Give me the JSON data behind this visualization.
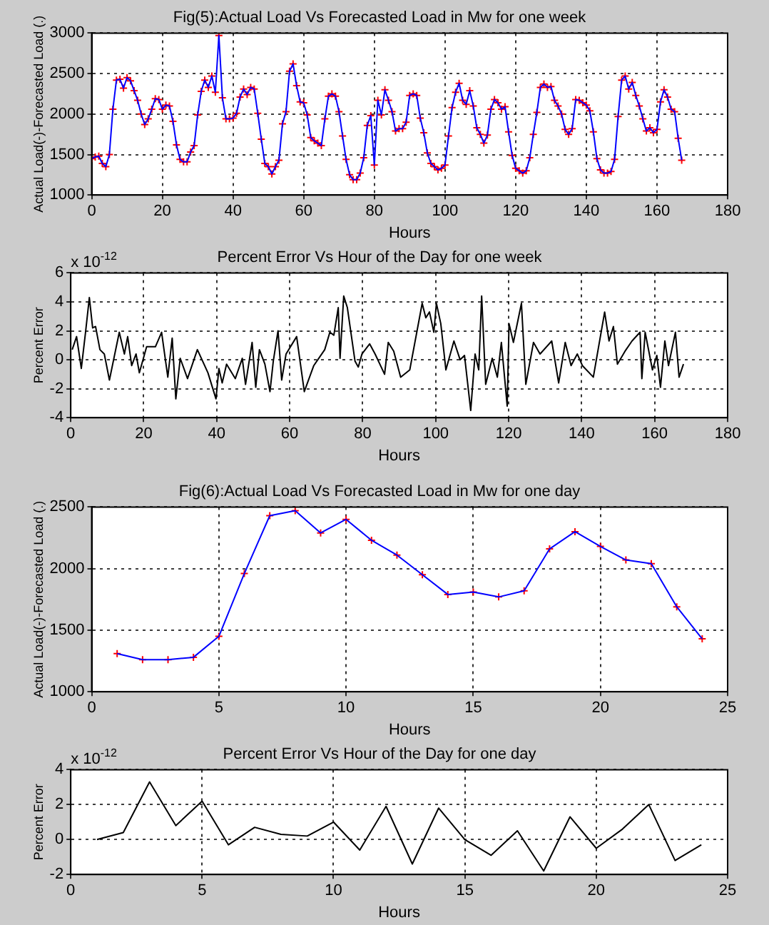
{
  "chart_data": [
    {
      "type": "line",
      "title": "Fig(5):Actual Load Vs Forecasted Load in Mw for one week",
      "xlabel": "Hours",
      "ylabel": "Actual Load(-)-Forecasted Load (.)",
      "x": [
        0,
        1,
        2,
        3,
        4,
        5,
        6,
        7,
        8,
        9,
        10,
        11,
        12,
        13,
        14,
        15,
        16,
        17,
        18,
        19,
        20,
        21,
        22,
        23,
        24,
        25,
        26,
        27,
        28,
        29,
        30,
        31,
        32,
        33,
        34,
        35,
        36,
        37,
        38,
        39,
        40,
        41,
        42,
        43,
        44,
        45,
        46,
        47,
        48,
        49,
        50,
        51,
        52,
        53,
        54,
        55,
        56,
        57,
        58,
        59,
        60,
        61,
        62,
        63,
        64,
        65,
        66,
        67,
        68,
        69,
        70,
        71,
        72,
        73,
        74,
        75,
        76,
        77,
        78,
        79,
        80,
        81,
        82,
        83,
        84,
        85,
        86,
        87,
        88,
        89,
        90,
        91,
        92,
        93,
        94,
        95,
        96,
        97,
        98,
        99,
        100,
        101,
        102,
        103,
        104,
        105,
        106,
        107,
        108,
        109,
        110,
        111,
        112,
        113,
        114,
        115,
        116,
        117,
        118,
        119,
        120,
        121,
        122,
        123,
        124,
        125,
        126,
        127,
        128,
        129,
        130,
        131,
        132,
        133,
        134,
        135,
        136,
        137,
        138,
        139,
        140,
        141,
        142,
        143,
        144,
        145,
        146,
        147,
        148,
        149,
        150,
        151,
        152,
        153,
        154,
        155,
        156,
        157,
        158,
        159,
        160,
        161,
        162,
        163,
        164,
        165,
        166,
        167
      ],
      "series": [
        {
          "type": "line",
          "color": "#0000ff",
          "marker": "none",
          "values": [
            1450,
            1470,
            1480,
            1390,
            1350,
            1500,
            2060,
            2420,
            2430,
            2320,
            2450,
            2410,
            2290,
            2170,
            2000,
            1870,
            1940,
            2060,
            2190,
            2180,
            2060,
            2110,
            2100,
            1910,
            1620,
            1440,
            1410,
            1410,
            1530,
            1610,
            1990,
            2280,
            2420,
            2330,
            2470,
            2270,
            2970,
            2200,
            1940,
            1940,
            1950,
            2010,
            2210,
            2310,
            2240,
            2330,
            2310,
            2010,
            1690,
            1390,
            1350,
            1260,
            1350,
            1430,
            1880,
            2030,
            2530,
            2620,
            2350,
            2150,
            2140,
            1990,
            1710,
            1670,
            1640,
            1610,
            1940,
            2220,
            2250,
            2220,
            2030,
            1730,
            1440,
            1250,
            1190,
            1190,
            1270,
            1460,
            1860,
            1980,
            1370,
            2170,
            1990,
            2300,
            2170,
            2030,
            1790,
            1820,
            1820,
            1900,
            2230,
            2250,
            2230,
            1950,
            1770,
            1520,
            1390,
            1350,
            1310,
            1330,
            1370,
            1730,
            2080,
            2270,
            2380,
            2170,
            2120,
            2290,
            2100,
            1830,
            1750,
            1640,
            1740,
            2060,
            2180,
            2140,
            2060,
            2090,
            1780,
            1490,
            1330,
            1300,
            1270,
            1300,
            1460,
            1750,
            2020,
            2330,
            2370,
            2330,
            2340,
            2170,
            2100,
            2000,
            1810,
            1750,
            1820,
            2180,
            2170,
            2140,
            2110,
            2040,
            1780,
            1450,
            1310,
            1270,
            1270,
            1290,
            1440,
            1970,
            2420,
            2470,
            2310,
            2390,
            2230,
            2100,
            1940,
            1790,
            1830,
            1770,
            1810,
            2150,
            2300,
            2210,
            2060,
            2030,
            1700,
            1430
          ]
        },
        {
          "type": "scatter",
          "color": "#ff0000",
          "marker": "cross",
          "values": [
            1450,
            1470,
            1480,
            1390,
            1350,
            1500,
            2060,
            2420,
            2430,
            2320,
            2450,
            2410,
            2290,
            2170,
            2000,
            1870,
            1940,
            2060,
            2190,
            2180,
            2060,
            2110,
            2100,
            1910,
            1620,
            1440,
            1410,
            1410,
            1530,
            1610,
            1990,
            2280,
            2420,
            2330,
            2470,
            2270,
            2970,
            2200,
            1940,
            1940,
            1950,
            2010,
            2210,
            2310,
            2240,
            2330,
            2310,
            2010,
            1690,
            1390,
            1350,
            1260,
            1350,
            1430,
            1880,
            2030,
            2530,
            2620,
            2350,
            2150,
            2140,
            1990,
            1710,
            1670,
            1640,
            1610,
            1940,
            2220,
            2250,
            2220,
            2030,
            1730,
            1440,
            1250,
            1190,
            1190,
            1270,
            1460,
            1860,
            1980,
            1370,
            2170,
            1990,
            2300,
            2170,
            2030,
            1790,
            1820,
            1820,
            1900,
            2230,
            2250,
            2230,
            1950,
            1770,
            1520,
            1390,
            1350,
            1310,
            1330,
            1370,
            1730,
            2080,
            2270,
            2380,
            2170,
            2120,
            2290,
            2100,
            1830,
            1750,
            1640,
            1740,
            2060,
            2180,
            2140,
            2060,
            2090,
            1780,
            1490,
            1330,
            1300,
            1270,
            1300,
            1460,
            1750,
            2020,
            2330,
            2370,
            2330,
            2340,
            2170,
            2100,
            2000,
            1810,
            1750,
            1820,
            2180,
            2170,
            2140,
            2110,
            2040,
            1780,
            1450,
            1310,
            1270,
            1270,
            1290,
            1440,
            1970,
            2420,
            2470,
            2310,
            2390,
            2230,
            2100,
            1940,
            1790,
            1830,
            1770,
            1810,
            2150,
            2300,
            2210,
            2060,
            2030,
            1700,
            1430
          ]
        }
      ],
      "xlim": [
        0,
        180
      ],
      "xticks": [
        0,
        20,
        40,
        60,
        80,
        100,
        120,
        140,
        160,
        180
      ],
      "ylim": [
        1000,
        3000
      ],
      "yticks": [
        1000,
        1500,
        2000,
        2500,
        3000
      ],
      "grid": true,
      "legend": false
    },
    {
      "type": "line",
      "title": "Percent Error Vs Hour of the Day for one week",
      "xlabel": "Hours",
      "ylabel": "Percent Error",
      "annotations": [
        "x 10$^{-12}$"
      ],
      "x": [
        0.4,
        1.6,
        2.9,
        4.1,
        5.1,
        6,
        6.8,
        8,
        9.2,
        10.6,
        13.3,
        14.7,
        15.6,
        16.7,
        17.9,
        18.8,
        20.8,
        23.2,
        24.9,
        26.6,
        27.8,
        28.8,
        30,
        32,
        34.7,
        37.6,
        39.8,
        40.6,
        41.5,
        42.7,
        45.1,
        47,
        47.9,
        49.7,
        50.7,
        51.7,
        53.2,
        54.6,
        55.5,
        56.8,
        57.8,
        59,
        61.9,
        64,
        66.6,
        69.6,
        71,
        72.1,
        73.3,
        73.8,
        74.8,
        75.8,
        77.9,
        78.8,
        79.8,
        81.9,
        83.4,
        86,
        87,
        88.5,
        90.4,
        92.9,
        96.3,
        97.3,
        98.3,
        99.5,
        100.2,
        101.4,
        102.8,
        105,
        106.7,
        107.9,
        109.6,
        110.8,
        111.8,
        112.6,
        113.7,
        115.5,
        116.9,
        118,
        119.6,
        120.1,
        121.3,
        123.5,
        124.7,
        126.8,
        128.6,
        131.8,
        133.7,
        135.5,
        137.1,
        138.8,
        140.2,
        143.2,
        146.3,
        147.5,
        148.7,
        149.8,
        151.9,
        153.8,
        156,
        156.5,
        157.4,
        159.4,
        160.6,
        161.6,
        162.8,
        163.8,
        165.7,
        166.7,
        167.9
      ],
      "series": [
        {
          "color": "#000000",
          "values": [
            0.7,
            1.6,
            -0.6,
            2,
            4.3,
            2.2,
            2.3,
            0.7,
            0.4,
            -1.4,
            1.9,
            0.4,
            1.6,
            -0.4,
            0.4,
            -0.9,
            0.9,
            0.9,
            1.9,
            -1.2,
            1.5,
            -2.7,
            0.1,
            -1.3,
            0.7,
            -0.9,
            -2.7,
            -0.6,
            -1.6,
            -0.3,
            -1.3,
            0.1,
            -1.7,
            1.2,
            -1.9,
            0.7,
            -0.3,
            -2.2,
            -0.1,
            2,
            -1.4,
            0.4,
            1.6,
            -2.2,
            -0.4,
            0.7,
            1.9,
            1.7,
            3.6,
            0.1,
            4.4,
            3.6,
            -0.1,
            -0.5,
            0.4,
            1.1,
            0.4,
            -1,
            1.2,
            0.6,
            -1.2,
            -0.7,
            3.9,
            2.9,
            3.3,
            1.9,
            3.9,
            2.5,
            -0.7,
            1.3,
            0,
            0.3,
            -3.5,
            0.4,
            -0.7,
            4.4,
            -1.7,
            0.1,
            -1.2,
            1.2,
            -3.2,
            2.5,
            1.2,
            3.9,
            -1.7,
            1.2,
            0.4,
            1.3,
            -1.6,
            1.2,
            -0.4,
            0.4,
            -0.4,
            -1.2,
            3.3,
            1.3,
            2.3,
            -0.3,
            0.6,
            1.3,
            1.9,
            -1.3,
            1.9,
            -0.7,
            0.3,
            -1.9,
            1.3,
            -0.4,
            1.9,
            -1.2,
            -0.3
          ]
        }
      ],
      "xlim": [
        0,
        180
      ],
      "xticks": [
        0,
        20,
        40,
        60,
        80,
        100,
        120,
        140,
        160,
        180
      ],
      "ylim": [
        -4,
        6
      ],
      "yticks": [
        -4,
        -2,
        0,
        2,
        4,
        6
      ],
      "grid": true,
      "legend": false
    },
    {
      "type": "line",
      "title": "Fig(6):Actual Load Vs Forecasted Load in Mw for one day",
      "xlabel": "Hours",
      "ylabel": "Actual Load(-)-Forecasted Load (.)",
      "x": [
        1,
        2,
        3,
        4,
        5,
        6,
        7,
        8,
        9,
        10,
        11,
        12,
        13,
        14,
        15,
        16,
        17,
        18,
        19,
        20,
        21,
        22,
        23,
        24
      ],
      "series": [
        {
          "type": "line",
          "color": "#0000ff",
          "marker": "none",
          "values": [
            1310,
            1260,
            1260,
            1280,
            1450,
            1960,
            2430,
            2470,
            2290,
            2400,
            2230,
            2110,
            1950,
            1790,
            1810,
            1770,
            1820,
            2160,
            2300,
            2180,
            2070,
            2040,
            1690,
            1430
          ]
        },
        {
          "type": "scatter",
          "color": "#ff0000",
          "marker": "cross",
          "values": [
            1310,
            1260,
            1260,
            1280,
            1450,
            1960,
            2430,
            2470,
            2290,
            2400,
            2230,
            2110,
            1950,
            1790,
            1810,
            1770,
            1820,
            2160,
            2300,
            2180,
            2070,
            2040,
            1690,
            1430
          ]
        }
      ],
      "xlim": [
        0,
        25
      ],
      "xticks": [
        0,
        5,
        10,
        15,
        20,
        25
      ],
      "ylim": [
        1000,
        2500
      ],
      "yticks": [
        1000,
        1500,
        2000,
        2500
      ],
      "grid": true,
      "legend": false
    },
    {
      "type": "line",
      "title": "Percent Error Vs Hour of the Day for one day",
      "xlabel": "Hours",
      "ylabel": "Percent Error",
      "annotations": [
        "x 10$^{-12}$"
      ],
      "x": [
        1,
        2,
        3,
        4,
        5,
        6,
        7,
        8,
        9,
        10,
        11,
        12,
        13,
        14,
        15,
        16,
        17,
        18,
        19,
        20,
        21,
        22,
        23,
        24
      ],
      "series": [
        {
          "color": "#000000",
          "values": [
            0,
            0.4,
            3.3,
            0.8,
            2.2,
            -0.3,
            0.7,
            0.3,
            0.2,
            1,
            -0.6,
            1.9,
            -1.4,
            1.8,
            0,
            -0.9,
            0.5,
            -1.8,
            1.3,
            -0.5,
            0.6,
            2,
            -1.2,
            -0.3
          ]
        }
      ],
      "xlim": [
        0,
        25
      ],
      "xticks": [
        0,
        5,
        10,
        15,
        20,
        25
      ],
      "ylim": [
        -2,
        4
      ],
      "yticks": [
        -2,
        0,
        2,
        4
      ],
      "grid": true,
      "legend": false
    }
  ]
}
